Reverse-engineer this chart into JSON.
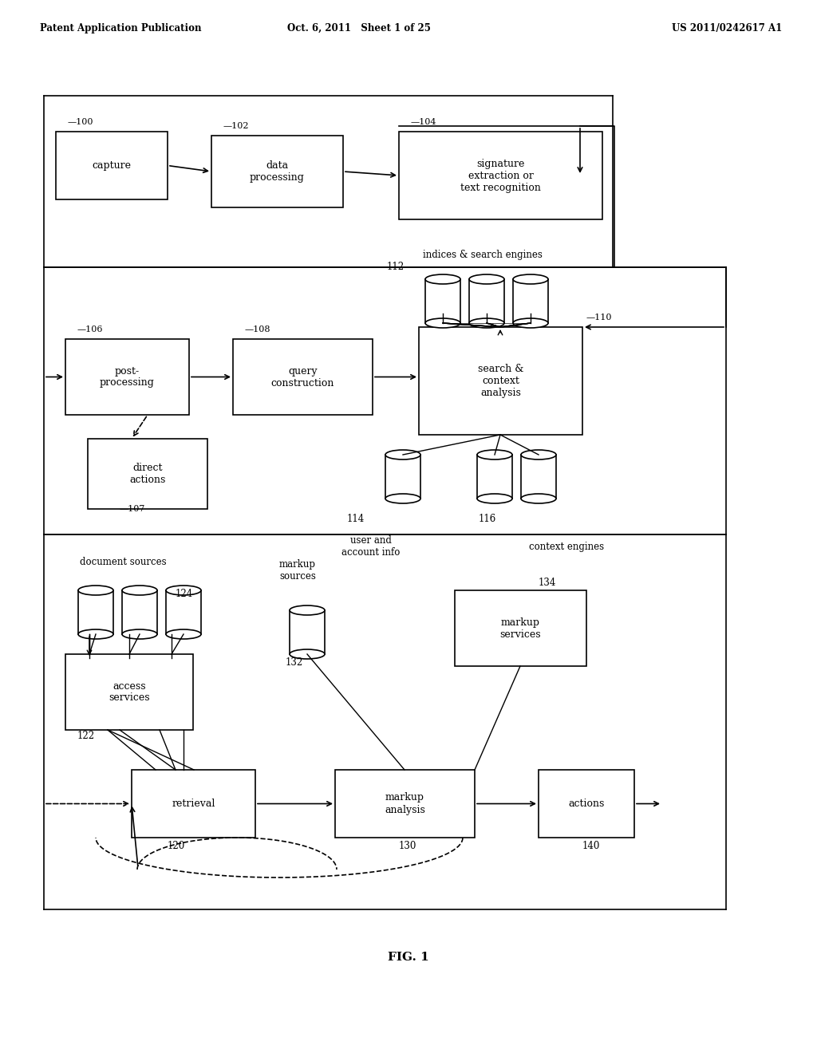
{
  "bg_color": "#ffffff",
  "header_left": "Patent Application Publication",
  "header_center": "Oct. 6, 2011   Sheet 1 of 25",
  "header_right": "US 2011/0242617 A1",
  "fig_label": "FIG. 1"
}
